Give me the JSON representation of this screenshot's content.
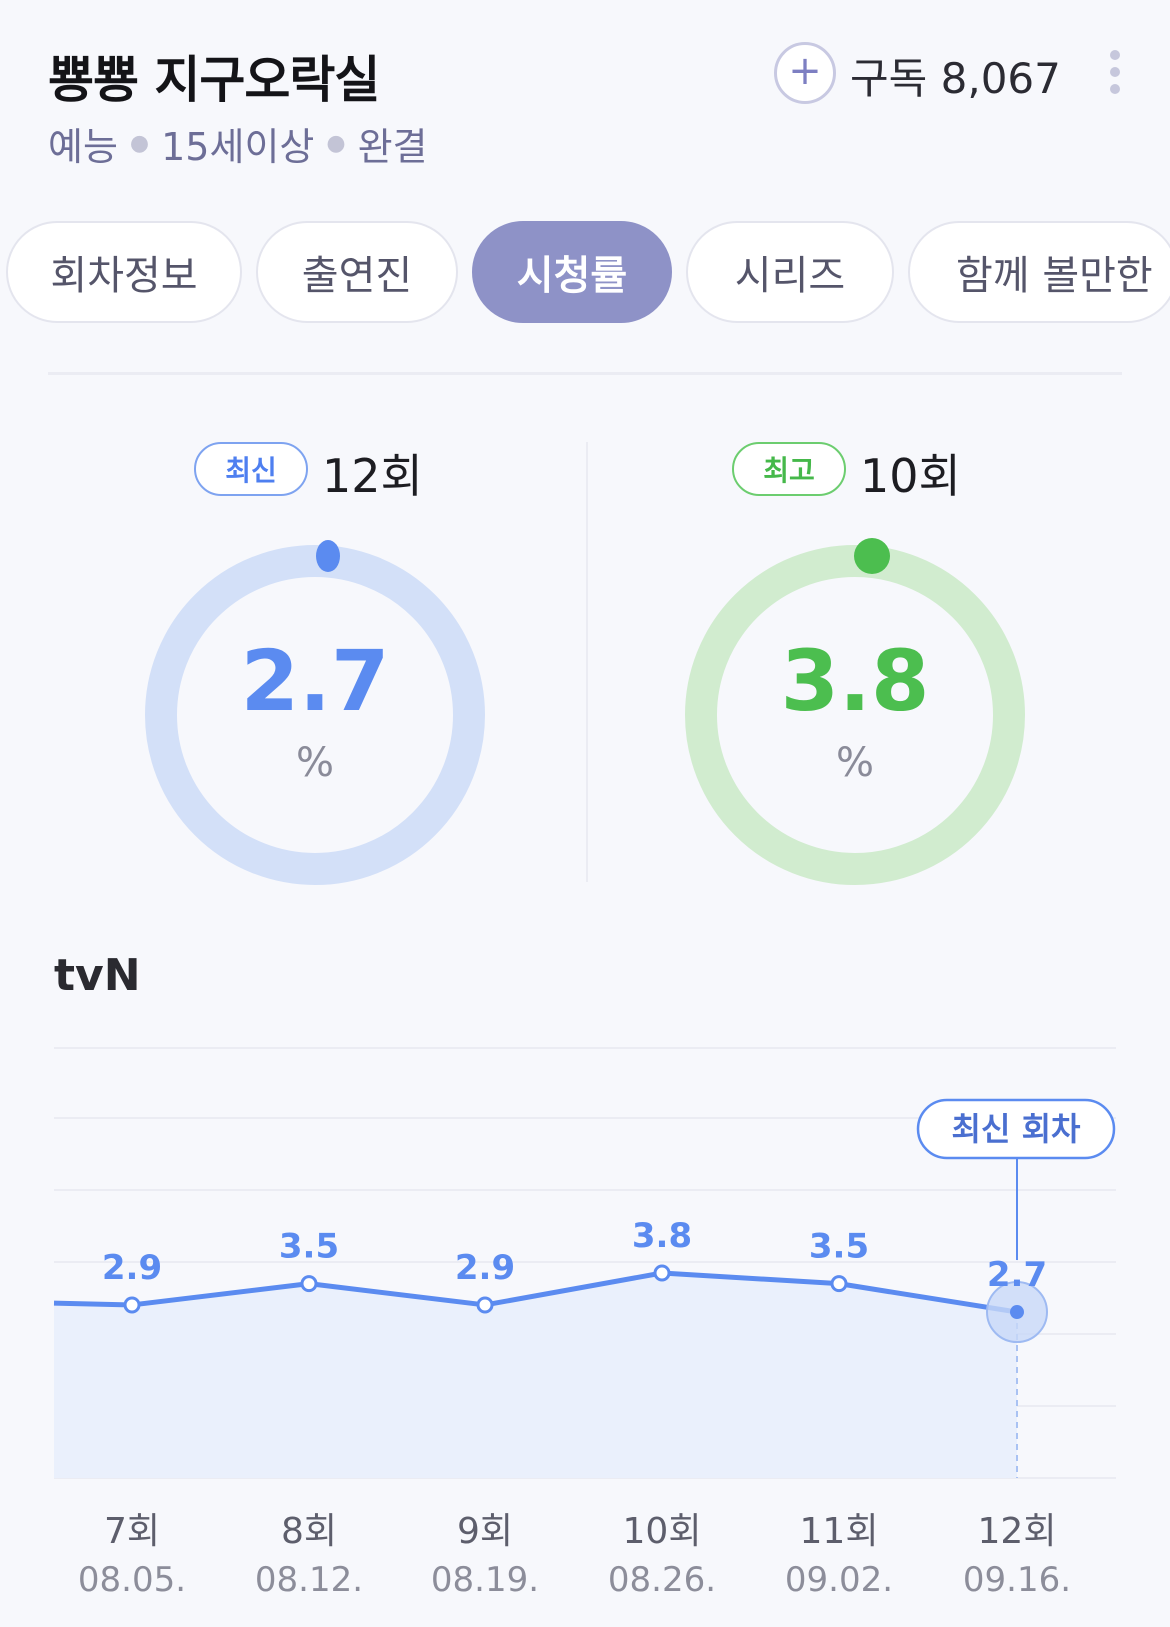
{
  "header": {
    "title": "뿅뿅 지구오락실",
    "meta": [
      "예능",
      "15세이상",
      "완결"
    ],
    "subscribe_label": "구독 8,067"
  },
  "tabs": [
    {
      "label": "회차정보",
      "active": false
    },
    {
      "label": "출연진",
      "active": false
    },
    {
      "label": "시청률",
      "active": true
    },
    {
      "label": "시리즈",
      "active": false
    },
    {
      "label": "함께 볼만한",
      "active": false
    }
  ],
  "ratings": {
    "latest": {
      "badge": "최신",
      "episode": "12회",
      "value": "2.7",
      "unit": "%",
      "color": "#5b8bf0"
    },
    "best": {
      "badge": "최고",
      "episode": "10회",
      "value": "3.8",
      "unit": "%",
      "color": "#4cbe4f"
    }
  },
  "network": "tvN",
  "chart_data": {
    "type": "line",
    "categories": [
      "7회",
      "8회",
      "9회",
      "10회",
      "11회",
      "12회"
    ],
    "dates": [
      "08.05.",
      "08.12.",
      "08.19.",
      "08.26.",
      "09.02.",
      "09.16."
    ],
    "values": [
      2.9,
      3.5,
      2.9,
      3.8,
      3.5,
      2.7
    ],
    "value_labels": [
      "2.9",
      "3.5",
      "2.9",
      "3.8",
      "3.5",
      "2.7"
    ],
    "highlight_label": "최신 회차",
    "highlight_index": 5,
    "color": "#5b8bf0",
    "grid": true
  }
}
